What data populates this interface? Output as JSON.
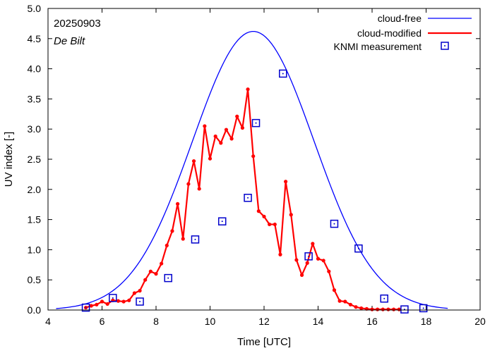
{
  "chart_data": {
    "type": "line",
    "title": "",
    "xlabel": "Time  [UTC]",
    "ylabel": "UV index  [-]",
    "xlim": [
      4,
      20
    ],
    "ylim": [
      0,
      5
    ],
    "xticks": [
      4,
      6,
      8,
      10,
      12,
      14,
      16,
      18,
      20
    ],
    "yticks": [
      0.0,
      0.5,
      1.0,
      1.5,
      2.0,
      2.5,
      3.0,
      3.5,
      4.0,
      4.5,
      5.0
    ],
    "annotations": {
      "date": "20250903",
      "location": "De Bilt"
    },
    "legend_position": "top-right",
    "colors": {
      "cloud_free": "#0000ff",
      "cloud_modified": "#ff0000",
      "measurement": "#0000cc"
    },
    "series": [
      {
        "name": "cloud-free",
        "style": "line",
        "peak_x": 11.6,
        "peak_y": 4.62,
        "sigma": 2.25,
        "x_start": 4.3,
        "x_end": 18.8
      },
      {
        "name": "cloud-modified",
        "style": "line-points",
        "x": [
          5.4,
          5.6,
          5.8,
          6.0,
          6.2,
          6.4,
          6.6,
          6.8,
          7.0,
          7.2,
          7.4,
          7.6,
          7.8,
          8.0,
          8.2,
          8.4,
          8.6,
          8.8,
          9.0,
          9.2,
          9.4,
          9.6,
          9.8,
          10.0,
          10.2,
          10.4,
          10.6,
          10.8,
          11.0,
          11.2,
          11.4,
          11.6,
          11.8,
          12.0,
          12.2,
          12.4,
          12.6,
          12.8,
          13.0,
          13.2,
          13.4,
          13.6,
          13.8,
          14.0,
          14.2,
          14.4,
          14.6,
          14.8,
          15.0,
          15.2,
          15.4,
          15.6,
          15.8,
          16.0,
          16.2,
          16.4,
          16.6,
          16.8,
          17.0
        ],
        "y": [
          0.04,
          0.07,
          0.09,
          0.14,
          0.1,
          0.16,
          0.15,
          0.14,
          0.16,
          0.28,
          0.32,
          0.5,
          0.64,
          0.6,
          0.77,
          1.07,
          1.31,
          1.76,
          1.18,
          2.09,
          2.47,
          2.01,
          3.05,
          2.51,
          2.88,
          2.77,
          2.99,
          2.84,
          3.21,
          3.02,
          3.66,
          2.55,
          1.64,
          1.55,
          1.42,
          1.42,
          0.92,
          2.13,
          1.58,
          0.83,
          0.58,
          0.78,
          1.1,
          0.85,
          0.82,
          0.64,
          0.33,
          0.15,
          0.14,
          0.09,
          0.05,
          0.03,
          0.02,
          0.01,
          0.01,
          0.01,
          0.01,
          0.01,
          0.01
        ]
      },
      {
        "name": "KNMI measurement",
        "style": "points",
        "x": [
          5.4,
          6.4,
          7.4,
          8.45,
          9.45,
          10.45,
          11.4,
          11.7,
          12.7,
          13.65,
          14.6,
          15.5,
          16.45,
          17.2,
          17.9
        ],
        "y": [
          0.04,
          0.2,
          0.14,
          0.53,
          1.17,
          1.47,
          1.86,
          3.1,
          3.92,
          0.89,
          1.43,
          1.02,
          0.19,
          0.01,
          0.03
        ]
      }
    ]
  }
}
